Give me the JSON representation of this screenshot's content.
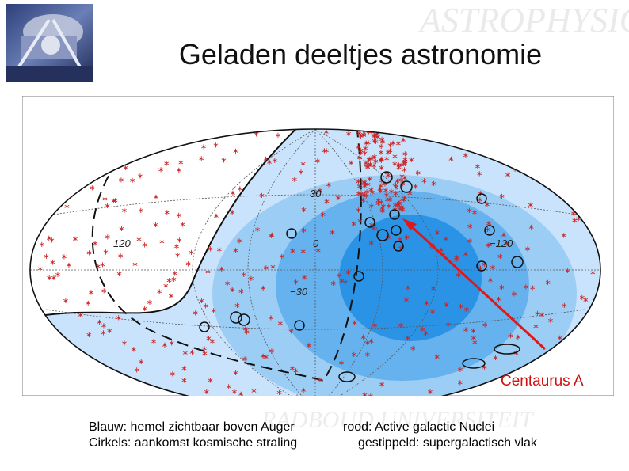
{
  "title": "Geladen deeltjes astronomie",
  "watermark": {
    "top_text": "ASTROPHYSICS",
    "bottom_text": "RADBOUD UNIVERSITEIT"
  },
  "skymap": {
    "grid_labels": {
      "lat_plus30": "30",
      "lat_zero": "0",
      "lat_minus30": "−30",
      "lon_plus120": "120",
      "lon_minus120": "−120"
    },
    "arrow_target_label": "Centaurus A",
    "colors": {
      "sky_light": "#c8e3fb",
      "sky_mid": "#9ccdf4",
      "sky_deep": "#66b2ee",
      "sky_core": "#2b93e6",
      "agn_marker": "#cc2222",
      "arrow": "#e01818",
      "event_circle": "#111111"
    }
  },
  "captions": {
    "left_line1": "Blauw: hemel zichtbaar boven Auger",
    "left_line2": "Cirkels: aankomst kosmische straling",
    "right_line1": "rood: Active galactic Nuclei",
    "right_line2": "gestippeld: supergalactisch vlak"
  }
}
